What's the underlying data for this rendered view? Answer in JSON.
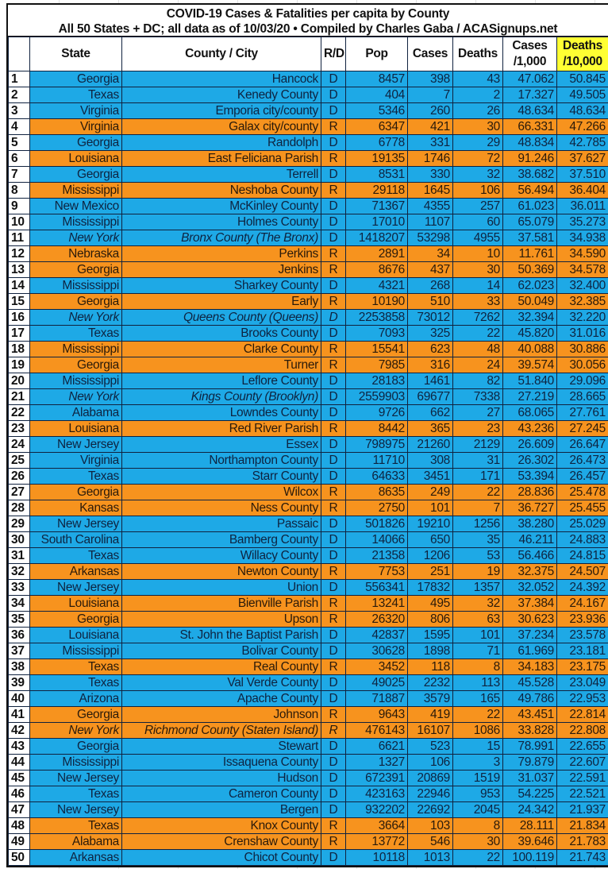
{
  "title_line1": "COVID-19 Cases & Fatalities per capita by County",
  "title_line2": "All 50 States + DC; all data as of 10/03/20  • Compiled by Charles Gaba / ACASignups.net",
  "colors": {
    "democrat_row": "#1ea9e6",
    "republican_row": "#f7931e",
    "highlight_header": "#ffff33"
  },
  "headers": {
    "index": "",
    "state": "State",
    "county": "County / City",
    "rd": "R/D",
    "pop": "Pop",
    "cases": "Cases",
    "deaths": "Deaths",
    "cases_per_1000_a": "Cases",
    "cases_per_1000_b": "/1,000",
    "deaths_per_10000_a": "Deaths",
    "deaths_per_10000_b": "/10,000"
  },
  "rows": [
    {
      "n": "1",
      "state": "Georgia",
      "county": "Hancock",
      "rd": "D",
      "pop": "8457",
      "cases": "398",
      "deaths": "43",
      "c1000": "47.062",
      "d10000": "50.845"
    },
    {
      "n": "2",
      "state": "Texas",
      "county": "Kenedy County",
      "rd": "D",
      "pop": "404",
      "cases": "7",
      "deaths": "2",
      "c1000": "17.327",
      "d10000": "49.505"
    },
    {
      "n": "3",
      "state": "Virginia",
      "county": "Emporia city/county",
      "rd": "D",
      "pop": "5346",
      "cases": "260",
      "deaths": "26",
      "c1000": "48.634",
      "d10000": "48.634"
    },
    {
      "n": "4",
      "state": "Virginia",
      "county": "Galax city/county",
      "rd": "R",
      "pop": "6347",
      "cases": "421",
      "deaths": "30",
      "c1000": "66.331",
      "d10000": "47.266"
    },
    {
      "n": "5",
      "state": "Georgia",
      "county": "Randolph",
      "rd": "D",
      "pop": "6778",
      "cases": "331",
      "deaths": "29",
      "c1000": "48.834",
      "d10000": "42.785"
    },
    {
      "n": "6",
      "state": "Louisiana",
      "county": "East Feliciana Parish",
      "rd": "R",
      "pop": "19135",
      "cases": "1746",
      "deaths": "72",
      "c1000": "91.246",
      "d10000": "37.627"
    },
    {
      "n": "7",
      "state": "Georgia",
      "county": "Terrell",
      "rd": "D",
      "pop": "8531",
      "cases": "330",
      "deaths": "32",
      "c1000": "38.682",
      "d10000": "37.510"
    },
    {
      "n": "8",
      "state": "Mississippi",
      "county": "Neshoba County",
      "rd": "R",
      "pop": "29118",
      "cases": "1645",
      "deaths": "106",
      "c1000": "56.494",
      "d10000": "36.404"
    },
    {
      "n": "9",
      "state": "New Mexico",
      "county": "McKinley County",
      "rd": "D",
      "pop": "71367",
      "cases": "4355",
      "deaths": "257",
      "c1000": "61.023",
      "d10000": "36.011"
    },
    {
      "n": "10",
      "state": "Mississippi",
      "county": "Holmes County",
      "rd": "D",
      "pop": "17010",
      "cases": "1107",
      "deaths": "60",
      "c1000": "65.079",
      "d10000": "35.273"
    },
    {
      "n": "11",
      "state": "New York",
      "county": "Bronx County (The Bronx)",
      "rd": "D",
      "pop": "1418207",
      "cases": "53298",
      "deaths": "4955",
      "c1000": "37.581",
      "d10000": "34.938",
      "italic": true
    },
    {
      "n": "12",
      "state": "Nebraska",
      "county": "Perkins",
      "rd": "R",
      "pop": "2891",
      "cases": "34",
      "deaths": "10",
      "c1000": "11.761",
      "d10000": "34.590"
    },
    {
      "n": "13",
      "state": "Georgia",
      "county": "Jenkins",
      "rd": "R",
      "pop": "8676",
      "cases": "437",
      "deaths": "30",
      "c1000": "50.369",
      "d10000": "34.578"
    },
    {
      "n": "14",
      "state": "Mississippi",
      "county": "Sharkey County",
      "rd": "D",
      "pop": "4321",
      "cases": "268",
      "deaths": "14",
      "c1000": "62.023",
      "d10000": "32.400"
    },
    {
      "n": "15",
      "state": "Georgia",
      "county": "Early",
      "rd": "R",
      "pop": "10190",
      "cases": "510",
      "deaths": "33",
      "c1000": "50.049",
      "d10000": "32.385"
    },
    {
      "n": "16",
      "state": "New York",
      "county": "Queens County (Queens)",
      "rd": "D",
      "pop": "2253858",
      "cases": "73012",
      "deaths": "7262",
      "c1000": "32.394",
      "d10000": "32.220",
      "italic": true,
      "rd_italic": true
    },
    {
      "n": "17",
      "state": "Texas",
      "county": "Brooks County",
      "rd": "D",
      "pop": "7093",
      "cases": "325",
      "deaths": "22",
      "c1000": "45.820",
      "d10000": "31.016"
    },
    {
      "n": "18",
      "state": "Mississippi",
      "county": "Clarke County",
      "rd": "R",
      "pop": "15541",
      "cases": "623",
      "deaths": "48",
      "c1000": "40.088",
      "d10000": "30.886"
    },
    {
      "n": "19",
      "state": "Georgia",
      "county": "Turner",
      "rd": "R",
      "pop": "7985",
      "cases": "316",
      "deaths": "24",
      "c1000": "39.574",
      "d10000": "30.056"
    },
    {
      "n": "20",
      "state": "Mississippi",
      "county": "Leflore County",
      "rd": "D",
      "pop": "28183",
      "cases": "1461",
      "deaths": "82",
      "c1000": "51.840",
      "d10000": "29.096"
    },
    {
      "n": "21",
      "state": "New York",
      "county": "Kings County (Brooklyn)",
      "rd": "D",
      "pop": "2559903",
      "cases": "69677",
      "deaths": "7338",
      "c1000": "27.219",
      "d10000": "28.665",
      "italic": true
    },
    {
      "n": "22",
      "state": "Alabama",
      "county": "Lowndes County",
      "rd": "D",
      "pop": "9726",
      "cases": "662",
      "deaths": "27",
      "c1000": "68.065",
      "d10000": "27.761"
    },
    {
      "n": "23",
      "state": "Louisiana",
      "county": "Red River Parish",
      "rd": "R",
      "pop": "8442",
      "cases": "365",
      "deaths": "23",
      "c1000": "43.236",
      "d10000": "27.245"
    },
    {
      "n": "24",
      "state": "New Jersey",
      "county": "Essex",
      "rd": "D",
      "pop": "798975",
      "cases": "21260",
      "deaths": "2129",
      "c1000": "26.609",
      "d10000": "26.647"
    },
    {
      "n": "25",
      "state": "Virginia",
      "county": "Northampton County",
      "rd": "D",
      "pop": "11710",
      "cases": "308",
      "deaths": "31",
      "c1000": "26.302",
      "d10000": "26.473"
    },
    {
      "n": "26",
      "state": "Texas",
      "county": "Starr County",
      "rd": "D",
      "pop": "64633",
      "cases": "3451",
      "deaths": "171",
      "c1000": "53.394",
      "d10000": "26.457"
    },
    {
      "n": "27",
      "state": "Georgia",
      "county": "Wilcox",
      "rd": "R",
      "pop": "8635",
      "cases": "249",
      "deaths": "22",
      "c1000": "28.836",
      "d10000": "25.478"
    },
    {
      "n": "28",
      "state": "Kansas",
      "county": "Ness County",
      "rd": "R",
      "pop": "2750",
      "cases": "101",
      "deaths": "7",
      "c1000": "36.727",
      "d10000": "25.455"
    },
    {
      "n": "29",
      "state": "New Jersey",
      "county": "Passaic",
      "rd": "D",
      "pop": "501826",
      "cases": "19210",
      "deaths": "1256",
      "c1000": "38.280",
      "d10000": "25.029"
    },
    {
      "n": "30",
      "state": "South Carolina",
      "county": "Bamberg County",
      "rd": "D",
      "pop": "14066",
      "cases": "650",
      "deaths": "35",
      "c1000": "46.211",
      "d10000": "24.883"
    },
    {
      "n": "31",
      "state": "Texas",
      "county": "Willacy County",
      "rd": "D",
      "pop": "21358",
      "cases": "1206",
      "deaths": "53",
      "c1000": "56.466",
      "d10000": "24.815"
    },
    {
      "n": "32",
      "state": "Arkansas",
      "county": "Newton County",
      "rd": "R",
      "pop": "7753",
      "cases": "251",
      "deaths": "19",
      "c1000": "32.375",
      "d10000": "24.507"
    },
    {
      "n": "33",
      "state": "New Jersey",
      "county": "Union",
      "rd": "D",
      "pop": "556341",
      "cases": "17832",
      "deaths": "1357",
      "c1000": "32.052",
      "d10000": "24.392"
    },
    {
      "n": "34",
      "state": "Louisiana",
      "county": "Bienville Parish",
      "rd": "R",
      "pop": "13241",
      "cases": "495",
      "deaths": "32",
      "c1000": "37.384",
      "d10000": "24.167"
    },
    {
      "n": "35",
      "state": "Georgia",
      "county": "Upson",
      "rd": "R",
      "pop": "26320",
      "cases": "806",
      "deaths": "63",
      "c1000": "30.623",
      "d10000": "23.936"
    },
    {
      "n": "36",
      "state": "Louisiana",
      "county": "St. John the Baptist Parish",
      "rd": "D",
      "pop": "42837",
      "cases": "1595",
      "deaths": "101",
      "c1000": "37.234",
      "d10000": "23.578"
    },
    {
      "n": "37",
      "state": "Mississippi",
      "county": "Bolivar County",
      "rd": "D",
      "pop": "30628",
      "cases": "1898",
      "deaths": "71",
      "c1000": "61.969",
      "d10000": "23.181"
    },
    {
      "n": "38",
      "state": "Texas",
      "county": "Real County",
      "rd": "R",
      "pop": "3452",
      "cases": "118",
      "deaths": "8",
      "c1000": "34.183",
      "d10000": "23.175"
    },
    {
      "n": "39",
      "state": "Texas",
      "county": "Val Verde County",
      "rd": "D",
      "pop": "49025",
      "cases": "2232",
      "deaths": "113",
      "c1000": "45.528",
      "d10000": "23.049"
    },
    {
      "n": "40",
      "state": "Arizona",
      "county": "Apache County",
      "rd": "D",
      "pop": "71887",
      "cases": "3579",
      "deaths": "165",
      "c1000": "49.786",
      "d10000": "22.953"
    },
    {
      "n": "41",
      "state": "Georgia",
      "county": "Johnson",
      "rd": "R",
      "pop": "9643",
      "cases": "419",
      "deaths": "22",
      "c1000": "43.451",
      "d10000": "22.814"
    },
    {
      "n": "42",
      "state": "New York",
      "county": "Richmond County (Staten Island)",
      "rd": "R",
      "pop": "476143",
      "cases": "16107",
      "deaths": "1086",
      "c1000": "33.828",
      "d10000": "22.808",
      "italic": true,
      "rd_italic": true
    },
    {
      "n": "43",
      "state": "Georgia",
      "county": "Stewart",
      "rd": "D",
      "pop": "6621",
      "cases": "523",
      "deaths": "15",
      "c1000": "78.991",
      "d10000": "22.655"
    },
    {
      "n": "44",
      "state": "Mississippi",
      "county": "Issaquena County",
      "rd": "D",
      "pop": "1327",
      "cases": "106",
      "deaths": "3",
      "c1000": "79.879",
      "d10000": "22.607"
    },
    {
      "n": "45",
      "state": "New Jersey",
      "county": "Hudson",
      "rd": "D",
      "pop": "672391",
      "cases": "20869",
      "deaths": "1519",
      "c1000": "31.037",
      "d10000": "22.591"
    },
    {
      "n": "46",
      "state": "Texas",
      "county": "Cameron County",
      "rd": "D",
      "pop": "423163",
      "cases": "22946",
      "deaths": "953",
      "c1000": "54.225",
      "d10000": "22.521"
    },
    {
      "n": "47",
      "state": "New Jersey",
      "county": "Bergen",
      "rd": "D",
      "pop": "932202",
      "cases": "22692",
      "deaths": "2045",
      "c1000": "24.342",
      "d10000": "21.937"
    },
    {
      "n": "48",
      "state": "Texas",
      "county": "Knox County",
      "rd": "R",
      "pop": "3664",
      "cases": "103",
      "deaths": "8",
      "c1000": "28.111",
      "d10000": "21.834"
    },
    {
      "n": "49",
      "state": "Alabama",
      "county": "Crenshaw County",
      "rd": "R",
      "pop": "13772",
      "cases": "546",
      "deaths": "30",
      "c1000": "39.646",
      "d10000": "21.783"
    },
    {
      "n": "50",
      "state": "Arkansas",
      "county": "Chicot County",
      "rd": "D",
      "pop": "10118",
      "cases": "1013",
      "deaths": "22",
      "c1000": "100.119",
      "d10000": "21.743"
    }
  ]
}
